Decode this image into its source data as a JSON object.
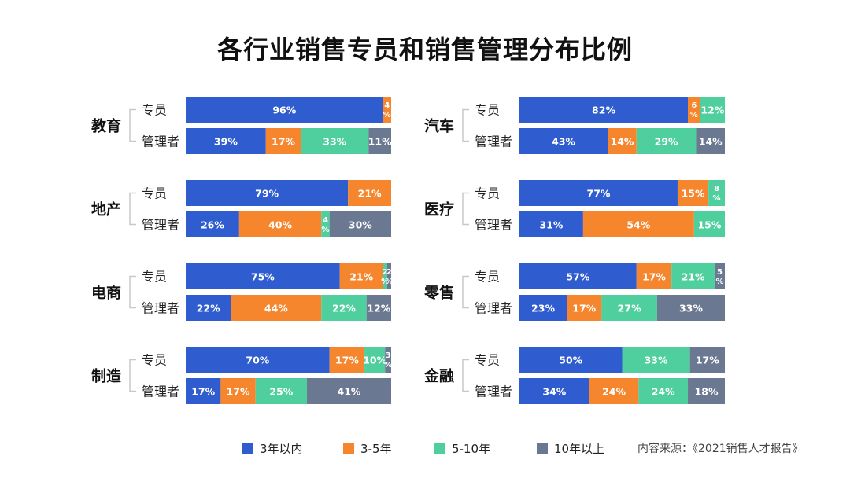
{
  "chart_data": {
    "type": "bar",
    "stacked": true,
    "orientation": "horizontal",
    "title": "各行业销售专员和销售管理分布比例",
    "source": "内容来源：《2021销售人才报告》",
    "legend_position": "bottom",
    "series_names": [
      "3年以内",
      "3-5年",
      "5-10年",
      "10年以上"
    ],
    "colors": [
      "#2f5dd0",
      "#f5862d",
      "#4fcf9e",
      "#6b7891"
    ],
    "row_labels": [
      "专员",
      "管理者"
    ],
    "industries": [
      {
        "name": "教育",
        "rows": [
          [
            96,
            4,
            0,
            0
          ],
          [
            39,
            17,
            33,
            11
          ]
        ]
      },
      {
        "name": "地产",
        "rows": [
          [
            79,
            21,
            0,
            0
          ],
          [
            26,
            40,
            4,
            30
          ]
        ]
      },
      {
        "name": "电商",
        "rows": [
          [
            75,
            21,
            2,
            2
          ],
          [
            22,
            44,
            22,
            12
          ]
        ]
      },
      {
        "name": "制造",
        "rows": [
          [
            70,
            17,
            10,
            3
          ],
          [
            17,
            17,
            25,
            41
          ]
        ]
      },
      {
        "name": "汽车",
        "rows": [
          [
            82,
            6,
            12,
            0
          ],
          [
            43,
            14,
            29,
            14
          ]
        ]
      },
      {
        "name": "医疗",
        "rows": [
          [
            77,
            15,
            8,
            0
          ],
          [
            31,
            54,
            15,
            0
          ]
        ]
      },
      {
        "name": "零售",
        "rows": [
          [
            57,
            17,
            21,
            5
          ],
          [
            23,
            17,
            27,
            33
          ]
        ]
      },
      {
        "name": "金融",
        "rows": [
          [
            50,
            0,
            33,
            17
          ],
          [
            34,
            24,
            24,
            18
          ]
        ]
      }
    ]
  }
}
